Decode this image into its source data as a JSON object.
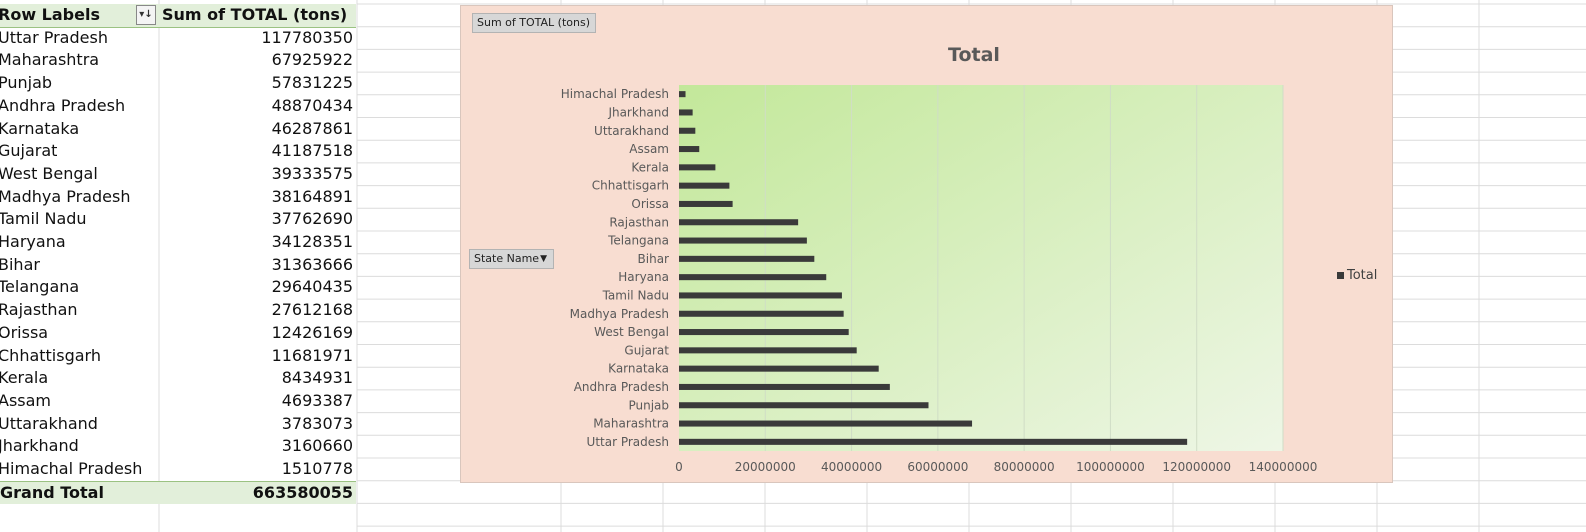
{
  "pivot": {
    "header_label": "Row Labels",
    "header_value": "Sum of TOTAL  (tons)",
    "filter_icon": "filter-dropdown-icon",
    "rows": [
      {
        "label": "Uttar Pradesh",
        "value": "117780350"
      },
      {
        "label": "Maharashtra",
        "value": "67925922"
      },
      {
        "label": "Punjab",
        "value": "57831225"
      },
      {
        "label": "Andhra Pradesh",
        "value": "48870434"
      },
      {
        "label": "Karnataka",
        "value": "46287861"
      },
      {
        "label": "Gujarat",
        "value": "41187518"
      },
      {
        "label": "West Bengal",
        "value": "39333575"
      },
      {
        "label": "Madhya Pradesh",
        "value": "38164891"
      },
      {
        "label": "Tamil Nadu",
        "value": "37762690"
      },
      {
        "label": "Haryana",
        "value": "34128351"
      },
      {
        "label": "Bihar",
        "value": "31363666"
      },
      {
        "label": "Telangana",
        "value": "29640435"
      },
      {
        "label": "Rajasthan",
        "value": "27612168"
      },
      {
        "label": "Orissa",
        "value": "12426169"
      },
      {
        "label": "Chhattisgarh",
        "value": "11681971"
      },
      {
        "label": "Kerala",
        "value": "8434931"
      },
      {
        "label": "Assam",
        "value": "4693387"
      },
      {
        "label": "Uttarakhand",
        "value": "3783073"
      },
      {
        "label": "Jharkhand",
        "value": "3160660"
      },
      {
        "label": "Himachal Pradesh",
        "value": "1510778"
      }
    ],
    "grand_total_label": "Grand Total",
    "grand_total_value": "663580055"
  },
  "chart_buttons": {
    "value_field": "Sum of TOTAL  (tons)",
    "axis_field": "State Name"
  },
  "chart_data": {
    "type": "bar",
    "orientation": "horizontal",
    "title": "Total",
    "categories": [
      "Himachal Pradesh",
      "Jharkhand",
      "Uttarakhand",
      "Assam",
      "Kerala",
      "Chhattisgarh",
      "Orissa",
      "Rajasthan",
      "Telangana",
      "Bihar",
      "Haryana",
      "Tamil Nadu",
      "Madhya Pradesh",
      "West Bengal",
      "Gujarat",
      "Karnataka",
      "Andhra Pradesh",
      "Punjab",
      "Maharashtra",
      "Uttar Pradesh"
    ],
    "series": [
      {
        "name": "Total",
        "values": [
          1510778,
          3160660,
          3783073,
          4693387,
          8434931,
          11681971,
          12426169,
          27612168,
          29640435,
          31363666,
          34128351,
          37762690,
          38164891,
          39333575,
          41187518,
          46287861,
          48870434,
          57831225,
          67925922,
          117780350
        ]
      }
    ],
    "xlim": [
      0,
      140000000
    ],
    "xticks": [
      "0",
      "20000000",
      "40000000",
      "60000000",
      "80000000",
      "100000000",
      "120000000",
      "140000000"
    ],
    "grid": true,
    "legend": "right",
    "colors": {
      "bar": "#3a3a3a",
      "plot_bg_start": "#c3e89a",
      "plot_bg_end": "#eef6e6",
      "chart_bg": "#f8ddd1",
      "header_bg": "#e2efda"
    }
  }
}
